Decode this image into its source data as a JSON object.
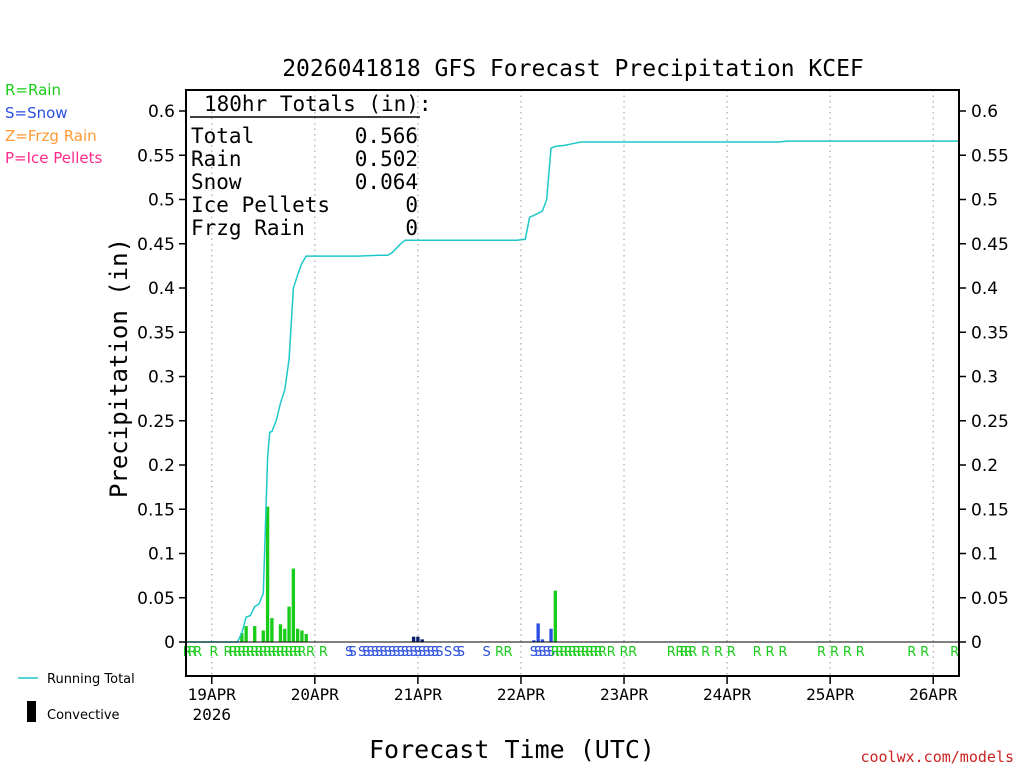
{
  "legend": {
    "rain": {
      "text": "R=Rain",
      "color": "#19cc19"
    },
    "snow": {
      "text": "S=Snow",
      "color": "#2b4fe0"
    },
    "frzg": {
      "text": "Z=Frzg Rain",
      "color": "#ff9933"
    },
    "ice": {
      "text": "P=Ice Pellets",
      "color": "#ff2a8a"
    },
    "running_total": "Running Total",
    "convective": "Convective"
  },
  "watermark": "coolwx.com/models",
  "totals_box": {
    "header": "180hr Totals (in):",
    "rows": [
      {
        "label": "Total",
        "value": "0.566"
      },
      {
        "label": "Rain",
        "value": "0.502"
      },
      {
        "label": "Snow",
        "value": "0.064"
      },
      {
        "label": "Ice Pellets",
        "value": "0"
      },
      {
        "label": "Frzg Rain",
        "value": "0"
      }
    ]
  },
  "chart_data": {
    "type": "bar+line",
    "title": "2026041818 GFS Forecast Precipitation KCEF",
    "xlabel": "Forecast Time (UTC)",
    "ylabel": "Precipitation (in)",
    "xlim_hours": [
      0,
      180
    ],
    "ylim": [
      -0.04,
      0.63
    ],
    "y_ticks": [
      "0",
      "0.05",
      "0.1",
      "0.15",
      "0.2",
      "0.25",
      "0.3",
      "0.35",
      "0.4",
      "0.45",
      "0.5",
      "0.55",
      "0.6"
    ],
    "x_ticks": [
      {
        "hour": 6,
        "label": "19APR",
        "sublabel": "2026"
      },
      {
        "hour": 30,
        "label": "20APR"
      },
      {
        "hour": 54,
        "label": "21APR"
      },
      {
        "hour": 78,
        "label": "22APR"
      },
      {
        "hour": 102,
        "label": "23APR"
      },
      {
        "hour": 126,
        "label": "24APR"
      },
      {
        "hour": 150,
        "label": "25APR"
      },
      {
        "hour": 174,
        "label": "26APR"
      }
    ],
    "colors": {
      "rain": "#19cc19",
      "snow": "#2b4fe0",
      "snow_conv": "#0a1e6e",
      "line": "#1ec8c8",
      "grid": "#aaaaaa"
    },
    "bars": [
      {
        "h": 13,
        "v": 0.01,
        "t": "R"
      },
      {
        "h": 14,
        "v": 0.018,
        "t": "R"
      },
      {
        "h": 16,
        "v": 0.018,
        "t": "R"
      },
      {
        "h": 18,
        "v": 0.013,
        "t": "R"
      },
      {
        "h": 19,
        "v": 0.153,
        "t": "R"
      },
      {
        "h": 20,
        "v": 0.027,
        "t": "R"
      },
      {
        "h": 22,
        "v": 0.02,
        "t": "R"
      },
      {
        "h": 23,
        "v": 0.015,
        "t": "R"
      },
      {
        "h": 24,
        "v": 0.04,
        "t": "R"
      },
      {
        "h": 25,
        "v": 0.083,
        "t": "R"
      },
      {
        "h": 26,
        "v": 0.015,
        "t": "R"
      },
      {
        "h": 27,
        "v": 0.013,
        "t": "R"
      },
      {
        "h": 28,
        "v": 0.009,
        "t": "R"
      },
      {
        "h": 53,
        "v": 0.006,
        "t": "S",
        "conv": true
      },
      {
        "h": 54,
        "v": 0.006,
        "t": "S",
        "conv": true
      },
      {
        "h": 55,
        "v": 0.003,
        "t": "S",
        "conv": true
      },
      {
        "h": 81,
        "v": 0.002,
        "t": "S"
      },
      {
        "h": 82,
        "v": 0.021,
        "t": "S"
      },
      {
        "h": 83,
        "v": 0.003,
        "t": "S"
      },
      {
        "h": 85,
        "v": 0.015,
        "t": "S"
      },
      {
        "h": 86,
        "v": 0.058,
        "t": "R"
      }
    ],
    "running_total": [
      [
        0,
        0
      ],
      [
        12,
        0
      ],
      [
        13,
        0.01
      ],
      [
        14,
        0.028
      ],
      [
        15,
        0.03
      ],
      [
        16,
        0.04
      ],
      [
        17,
        0.043
      ],
      [
        18,
        0.055
      ],
      [
        19,
        0.208
      ],
      [
        19.5,
        0.237
      ],
      [
        20,
        0.238
      ],
      [
        21,
        0.25
      ],
      [
        22,
        0.27
      ],
      [
        23,
        0.285
      ],
      [
        24,
        0.32
      ],
      [
        25,
        0.4
      ],
      [
        26,
        0.415
      ],
      [
        27,
        0.428
      ],
      [
        28,
        0.436
      ],
      [
        29,
        0.436
      ],
      [
        30,
        0.436
      ],
      [
        40,
        0.436
      ],
      [
        45,
        0.437
      ],
      [
        47,
        0.437
      ],
      [
        48,
        0.44
      ],
      [
        50,
        0.45
      ],
      [
        51,
        0.454
      ],
      [
        54,
        0.454
      ],
      [
        77,
        0.454
      ],
      [
        79,
        0.455
      ],
      [
        80,
        0.48
      ],
      [
        81,
        0.482
      ],
      [
        83,
        0.487
      ],
      [
        84,
        0.5
      ],
      [
        85,
        0.558
      ],
      [
        86,
        0.56
      ],
      [
        88,
        0.561
      ],
      [
        90,
        0.563
      ],
      [
        92,
        0.565
      ],
      [
        99,
        0.565
      ],
      [
        120,
        0.565
      ],
      [
        138,
        0.565
      ],
      [
        140,
        0.566
      ],
      [
        180,
        0.566
      ]
    ],
    "ptype_letters": [
      {
        "h": 0.3,
        "t": "R"
      },
      {
        "h": 1.5,
        "t": "R"
      },
      {
        "h": 2.7,
        "t": "R"
      },
      {
        "h": 6.5,
        "t": "R"
      },
      {
        "h": 9.8,
        "t": "R"
      },
      {
        "h": 11,
        "t": "R"
      },
      {
        "h": 12,
        "t": "R"
      },
      {
        "h": 13,
        "t": "R"
      },
      {
        "h": 14,
        "t": "R"
      },
      {
        "h": 15,
        "t": "R"
      },
      {
        "h": 16,
        "t": "R"
      },
      {
        "h": 17,
        "t": "R"
      },
      {
        "h": 18,
        "t": "R"
      },
      {
        "h": 19,
        "t": "R"
      },
      {
        "h": 20,
        "t": "R"
      },
      {
        "h": 21,
        "t": "R"
      },
      {
        "h": 22,
        "t": "R"
      },
      {
        "h": 23,
        "t": "R"
      },
      {
        "h": 24,
        "t": "R"
      },
      {
        "h": 25,
        "t": "R"
      },
      {
        "h": 26,
        "t": "R"
      },
      {
        "h": 27,
        "t": "R"
      },
      {
        "h": 29,
        "t": "R"
      },
      {
        "h": 32,
        "t": "R"
      },
      {
        "h": 38,
        "t": "S"
      },
      {
        "h": 38.8,
        "t": "S"
      },
      {
        "h": 41,
        "t": "S"
      },
      {
        "h": 42,
        "t": "S"
      },
      {
        "h": 43,
        "t": "S"
      },
      {
        "h": 44,
        "t": "S"
      },
      {
        "h": 45,
        "t": "S"
      },
      {
        "h": 46,
        "t": "S"
      },
      {
        "h": 47,
        "t": "S"
      },
      {
        "h": 48,
        "t": "S"
      },
      {
        "h": 49,
        "t": "S"
      },
      {
        "h": 50,
        "t": "S"
      },
      {
        "h": 51,
        "t": "S"
      },
      {
        "h": 52,
        "t": "S"
      },
      {
        "h": 53,
        "t": "S"
      },
      {
        "h": 54,
        "t": "S"
      },
      {
        "h": 55,
        "t": "S"
      },
      {
        "h": 56,
        "t": "S"
      },
      {
        "h": 57,
        "t": "S"
      },
      {
        "h": 58,
        "t": "S"
      },
      {
        "h": 59,
        "t": "S"
      },
      {
        "h": 61,
        "t": "S"
      },
      {
        "h": 63,
        "t": "S"
      },
      {
        "h": 64,
        "t": "S"
      },
      {
        "h": 70,
        "t": "S"
      },
      {
        "h": 73,
        "t": "R"
      },
      {
        "h": 75,
        "t": "R"
      },
      {
        "h": 81,
        "t": "S"
      },
      {
        "h": 82,
        "t": "S"
      },
      {
        "h": 83,
        "t": "S"
      },
      {
        "h": 84,
        "t": "S"
      },
      {
        "h": 85,
        "t": "S"
      },
      {
        "h": 86,
        "t": "R"
      },
      {
        "h": 87,
        "t": "R"
      },
      {
        "h": 88,
        "t": "R"
      },
      {
        "h": 89,
        "t": "R"
      },
      {
        "h": 90,
        "t": "R"
      },
      {
        "h": 91,
        "t": "R"
      },
      {
        "h": 92,
        "t": "R"
      },
      {
        "h": 93,
        "t": "R"
      },
      {
        "h": 94,
        "t": "R"
      },
      {
        "h": 95,
        "t": "R"
      },
      {
        "h": 96,
        "t": "R"
      },
      {
        "h": 97,
        "t": "R"
      },
      {
        "h": 99,
        "t": "R"
      },
      {
        "h": 102,
        "t": "R"
      },
      {
        "h": 104,
        "t": "R"
      },
      {
        "h": 113,
        "t": "R"
      },
      {
        "h": 115,
        "t": "R"
      },
      {
        "h": 116,
        "t": "R"
      },
      {
        "h": 117,
        "t": "R"
      },
      {
        "h": 118,
        "t": "R"
      },
      {
        "h": 121,
        "t": "R"
      },
      {
        "h": 124,
        "t": "R"
      },
      {
        "h": 127,
        "t": "R"
      },
      {
        "h": 133,
        "t": "R"
      },
      {
        "h": 136,
        "t": "R"
      },
      {
        "h": 139,
        "t": "R"
      },
      {
        "h": 148,
        "t": "R"
      },
      {
        "h": 151,
        "t": "R"
      },
      {
        "h": 154,
        "t": "R"
      },
      {
        "h": 157,
        "t": "R"
      },
      {
        "h": 169,
        "t": "R"
      },
      {
        "h": 172,
        "t": "R"
      },
      {
        "h": 179,
        "t": "R"
      }
    ]
  }
}
